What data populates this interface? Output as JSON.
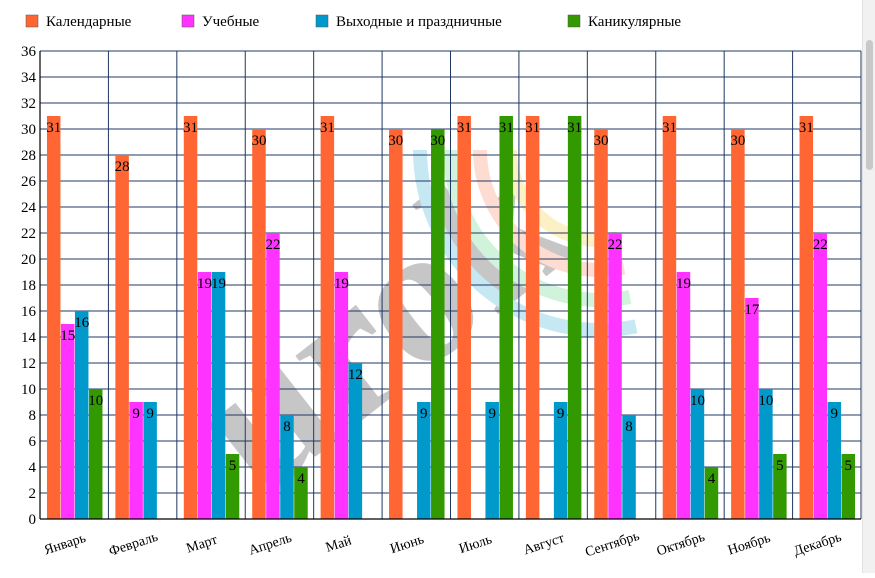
{
  "chart_data": {
    "type": "bar",
    "categories": [
      "Январь",
      "Февраль",
      "Март",
      "Апрель",
      "Май",
      "Июнь",
      "Июль",
      "Август",
      "Сентябрь",
      "Октябрь",
      "Ноябрь",
      "Декабрь"
    ],
    "series": [
      {
        "name": "Календарные",
        "color": "#ff6633",
        "values": [
          31,
          28,
          31,
          30,
          31,
          30,
          31,
          31,
          30,
          31,
          30,
          31
        ]
      },
      {
        "name": "Учебные",
        "color": "#ff33ff",
        "values": [
          15,
          9,
          19,
          22,
          19,
          0,
          0,
          0,
          22,
          19,
          17,
          22
        ]
      },
      {
        "name": "Выходные и праздничные",
        "color": "#0099cc",
        "values": [
          16,
          9,
          19,
          8,
          12,
          9,
          9,
          9,
          8,
          10,
          10,
          9
        ]
      },
      {
        "name": "Каникулярные",
        "color": "#339900",
        "values": [
          10,
          0,
          5,
          4,
          0,
          30,
          31,
          31,
          0,
          4,
          5,
          5
        ]
      }
    ],
    "ylim": [
      0,
      36
    ],
    "yticks": [
      0,
      2,
      4,
      6,
      8,
      10,
      12,
      14,
      16,
      18,
      20,
      22,
      24,
      26,
      28,
      30,
      32,
      34,
      36
    ],
    "legend_position": "top",
    "grid": true,
    "grid_color": "#1f3864"
  },
  "watermark": "urok"
}
